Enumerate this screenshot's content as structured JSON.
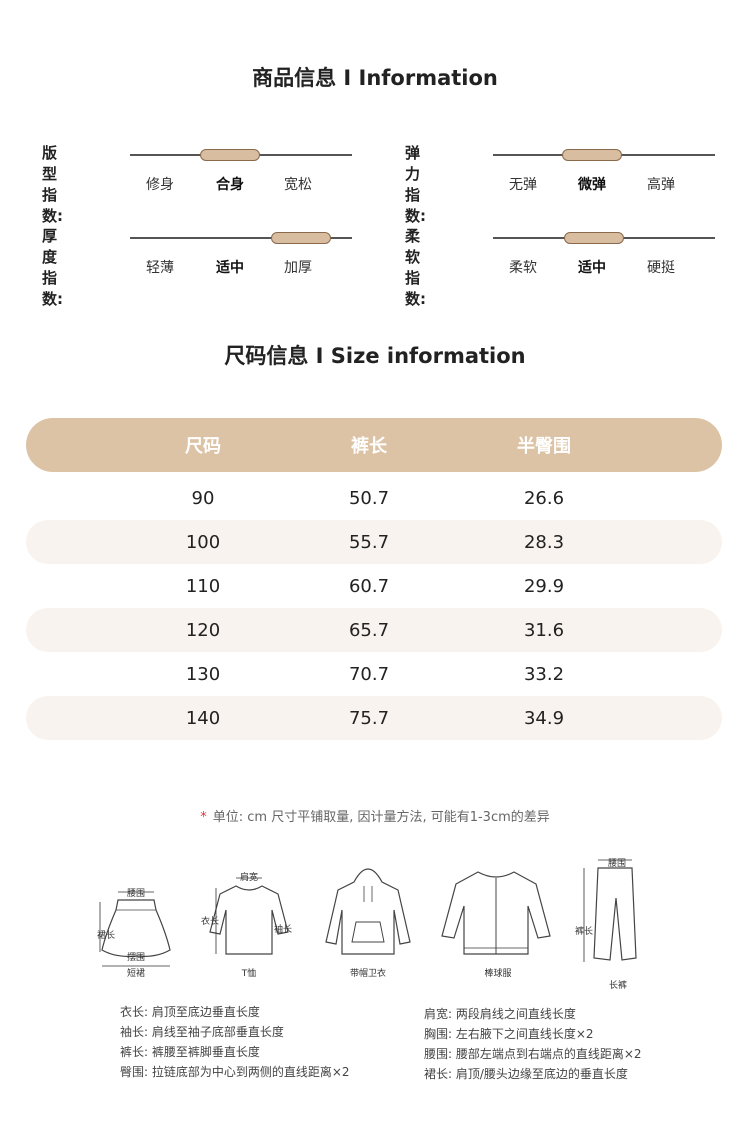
{
  "product_info": {
    "title": "商品信息 I  Information",
    "indices": [
      {
        "label": "版型指数:",
        "options": [
          "修身",
          "合身",
          "宽松"
        ],
        "selected": 1
      },
      {
        "label": "弹力指数:",
        "options": [
          "无弹",
          "微弹",
          "高弹"
        ],
        "selected": 1
      },
      {
        "label": "厚度指数:",
        "options": [
          "轻薄",
          "适中",
          "加厚"
        ],
        "selected": 2
      },
      {
        "label": "柔软指数:",
        "options": [
          "柔软",
          "适中",
          "硬挺"
        ],
        "selected": 1
      }
    ]
  },
  "size_info": {
    "title": "尺码信息 I Size information",
    "headers": [
      "尺码",
      "裤长",
      "半臀围"
    ],
    "rows": [
      [
        "90",
        "50.7",
        "26.6"
      ],
      [
        "100",
        "55.7",
        "28.3"
      ],
      [
        "110",
        "60.7",
        "29.9"
      ],
      [
        "120",
        "65.7",
        "31.6"
      ],
      [
        "130",
        "70.7",
        "33.2"
      ],
      [
        "140",
        "75.7",
        "34.9"
      ]
    ]
  },
  "note": {
    "star": "*",
    "text": "单位: cm  尺寸平铺取量, 因计量方法, 可能有1-3cm的差异"
  },
  "garments": {
    "skirt": {
      "caption": "短裙",
      "labels": [
        "腰围",
        "裙长",
        "摆围"
      ]
    },
    "tshirt": {
      "caption": "T恤",
      "labels": [
        "肩宽",
        "衣长",
        "袖长"
      ]
    },
    "hoodie": {
      "caption": "带帽卫衣"
    },
    "jacket": {
      "caption": "棒球服"
    },
    "pants": {
      "caption": "长裤",
      "labels": [
        "腰围",
        "裤长"
      ]
    }
  },
  "legend": {
    "left": [
      "衣长:  肩顶至底边垂直长度",
      "袖长:  肩线至袖子底部垂直长度",
      "裤长:  裤腰至裤脚垂直长度",
      "臀围:  拉链底部为中心到两侧的直线距离×2"
    ],
    "right": [
      "肩宽:  两段肩线之间直线长度",
      "胸围:  左右腋下之间直线长度×2",
      "腰围:  腰部左端点到右端点的直线距离×2",
      "裙长:  肩顶/腰头边缘至底边的垂直长度"
    ]
  }
}
